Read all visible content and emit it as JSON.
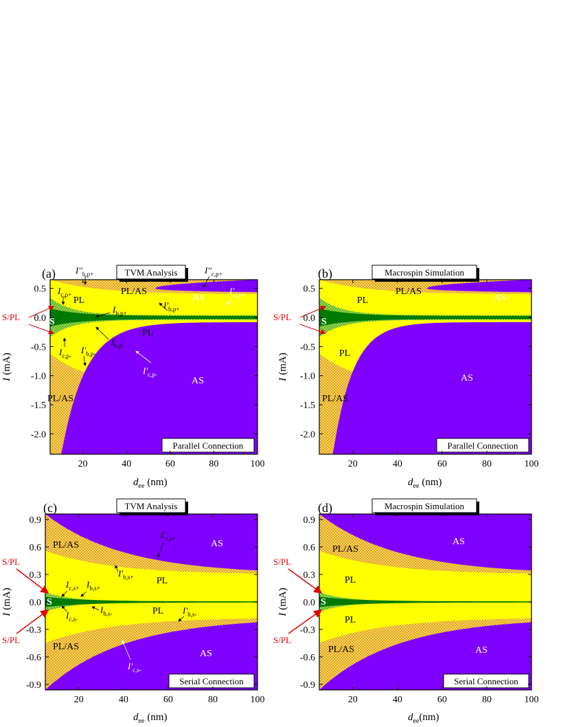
{
  "colors": {
    "AS": "#8000ff",
    "PL": "#ffff00",
    "PL_AS": "#e8b24a",
    "S": "#007a00",
    "S_PL": "#7ec23a",
    "arrow": "#e00000"
  },
  "common": {
    "xlabel_main": "d",
    "xlabel_sub": "ee",
    "xlabel_unit": "(nm)",
    "ylabel_main": "I",
    "ylabel_unit": "(mA)",
    "xlim": [
      5,
      100
    ],
    "xticks": [
      "20",
      "40",
      "60",
      "80",
      "100"
    ],
    "region_AS": "AS",
    "region_PL": "PL",
    "region_PLAS": "PL/AS",
    "region_S": "S",
    "region_SPL": "S/PL"
  },
  "chart_data": [
    {
      "type": "area",
      "panel": "(a)",
      "title": "TVM Analysis",
      "footer": "Parallel Connection",
      "ylim": [
        -2.35,
        0.65
      ],
      "yticks": [
        "0.5",
        "0.0",
        "-0.5",
        "-1.0",
        "-1.5",
        "-2.0"
      ],
      "boundaries": {
        "S_upper": [
          [
            5,
            0.15
          ],
          [
            20,
            0.09
          ],
          [
            40,
            0.05
          ],
          [
            60,
            0.03
          ],
          [
            80,
            0.025
          ],
          [
            100,
            0.02
          ]
        ],
        "S_lower": [
          [
            5,
            -0.15
          ],
          [
            20,
            -0.09
          ],
          [
            40,
            -0.05
          ],
          [
            60,
            -0.03
          ],
          [
            80,
            -0.025
          ],
          [
            100,
            -0.02
          ]
        ],
        "PL_upper_top": [
          [
            5,
            0.65
          ],
          [
            100,
            0.65
          ]
        ],
        "AS_upper": [
          [
            53,
            0.5
          ],
          [
            60,
            0.58
          ],
          [
            70,
            0.63
          ],
          [
            80,
            0.65
          ],
          [
            100,
            0.65
          ]
        ],
        "PLAS_upper": [
          [
            5,
            0.65
          ],
          [
            30,
            0.62
          ],
          [
            50,
            0.52
          ],
          [
            65,
            0.45
          ],
          [
            80,
            0.42
          ],
          [
            100,
            0.4
          ]
        ],
        "PL_lower": [
          [
            5,
            -0.7
          ],
          [
            10,
            -0.9
          ],
          [
            20,
            -1.05
          ],
          [
            40,
            -1.15
          ],
          [
            100,
            -1.2
          ]
        ],
        "AS_lower": [
          [
            10,
            -2.35
          ],
          [
            15,
            -1.8
          ],
          [
            20,
            -1.35
          ],
          [
            25,
            -0.95
          ],
          [
            30,
            -0.7
          ],
          [
            40,
            -0.45
          ],
          [
            50,
            -0.33
          ],
          [
            60,
            -0.22
          ],
          [
            80,
            -0.12
          ],
          [
            100,
            -0.09
          ]
        ]
      },
      "annotations": [
        "I''b,p+",
        "I''c,p+",
        "Ic,p+",
        "I'c,p+",
        "I'b,p+",
        "Ib,p+",
        "Ib,p-",
        "Ic,p-",
        "I'b,p-",
        "I'c,p-"
      ]
    },
    {
      "type": "area",
      "panel": "(b)",
      "title": "Macrospin Simulation",
      "footer": "Parallel Connection",
      "ylim": [
        -2.35,
        0.65
      ]
    },
    {
      "type": "area",
      "panel": "(c)",
      "title": "TVM Analysis",
      "footer": "Serial Connection",
      "ylim": [
        -0.96,
        0.96
      ],
      "yticks": [
        "0.9",
        "0.6",
        "0.3",
        "0.0",
        "-0.3",
        "-0.6",
        "-0.9"
      ],
      "annotations": [
        "I'c,s+",
        "I'b,s+",
        "Ic,s+",
        "Ib,s+",
        "Ic,s-",
        "Ib,s-",
        "I'b,s-",
        "I'c,s-"
      ]
    },
    {
      "type": "area",
      "panel": "(d)",
      "title": "Macrospin Simulation",
      "footer": "Serial Connection",
      "ylim": [
        -0.96,
        0.96
      ]
    }
  ]
}
